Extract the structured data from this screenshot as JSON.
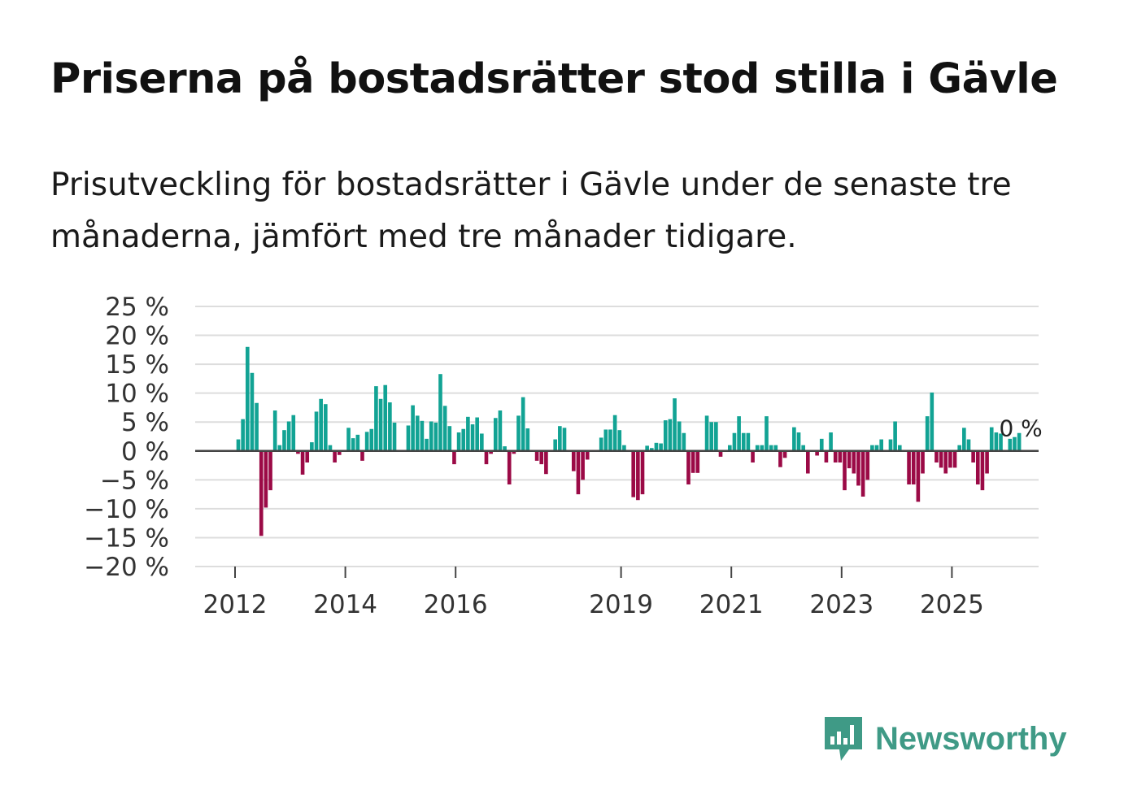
{
  "title": "Priserna på bostadsrätter stod stilla i Gävle",
  "subtitle": "Prisutveckling för bostadsrätter i Gävle under de senaste tre månaderna, jämfört med tre månader tidigare.",
  "brand": {
    "name": "Newsworthy",
    "color": "#3f9a86"
  },
  "colors": {
    "positive": "#12a394",
    "negative": "#9b0a46",
    "zero_line": "#444444",
    "grid": "#dddddd"
  },
  "chart_data": {
    "type": "bar",
    "title": "Priserna på bostadsrätter stod stilla i Gävle",
    "xlabel": "",
    "ylabel": "",
    "ylim": [
      -20,
      25
    ],
    "y_ticks": [
      25,
      20,
      15,
      10,
      5,
      0,
      -5,
      -10,
      -15,
      -20
    ],
    "y_tick_labels": [
      "25 %",
      "20 %",
      "15 %",
      "10 %",
      "5 %",
      "0 %",
      "−5 %",
      "−10 %",
      "−15 %",
      "−20 %"
    ],
    "x_tick_labels": [
      "2012",
      "2014",
      "2016",
      "2019",
      "2021",
      "2023",
      "2025"
    ],
    "x_tick_years": [
      2012,
      2014,
      2016,
      2019,
      2021,
      2023,
      2025
    ],
    "start": 2012.0,
    "step_years": 0.0833,
    "annotation": "0 %",
    "values": [
      2,
      5.5,
      18,
      13.5,
      8.3,
      -14.7,
      -9.8,
      -6.8,
      7,
      1,
      3.6,
      5.1,
      6.2,
      -0.5,
      -4.1,
      -2,
      1.5,
      6.8,
      9,
      8.1,
      1,
      -2,
      -0.7,
      0,
      4,
      2.2,
      2.8,
      -1.7,
      3.3,
      3.8,
      11.2,
      9,
      11.4,
      8.4,
      4.9,
      0,
      0,
      4.4,
      7.9,
      6.1,
      5.2,
      2.1,
      5.1,
      4.9,
      13.3,
      7.8,
      4.3,
      -2.3,
      3.2,
      3.8,
      5.9,
      4.6,
      5.8,
      3,
      -2.3,
      -0.5,
      5.7,
      7,
      0.8,
      -5.8,
      -0.5,
      6.1,
      9.3,
      3.9,
      0,
      -1.7,
      -2.3,
      -4,
      0,
      2,
      4.3,
      4,
      0,
      -3.5,
      -7.5,
      -5,
      -1.5,
      0,
      0,
      2.3,
      3.7,
      3.7,
      6.2,
      3.6,
      1,
      0,
      -8,
      -8.5,
      -7.5,
      0.9,
      0.5,
      1.4,
      1.3,
      5.3,
      5.5,
      9.1,
      5.1,
      3.1,
      -5.8,
      -3.8,
      -3.8,
      0,
      6.1,
      5,
      5,
      -1,
      0,
      1,
      3.1,
      6,
      3.1,
      3.1,
      -2,
      1,
      1,
      6,
      1,
      1,
      -2.8,
      -1.2,
      0,
      4.1,
      3.2,
      1,
      -3.9,
      0,
      -0.8,
      2.1,
      -2,
      3.2,
      -2,
      -2,
      -6.8,
      -3,
      -3.9,
      -6,
      -7.9,
      -5,
      1,
      1,
      2,
      0,
      2,
      5.1,
      1,
      0,
      -5.8,
      -5.8,
      -8.8,
      -3.9,
      6,
      10.1,
      -2,
      -2.9,
      -3.9,
      -2.9,
      -2.9,
      1,
      4,
      2,
      -2,
      -5.8,
      -6.8,
      -3.9,
      4.1,
      3.2,
      3,
      0,
      2.1,
      2.4,
      3.1
    ]
  }
}
